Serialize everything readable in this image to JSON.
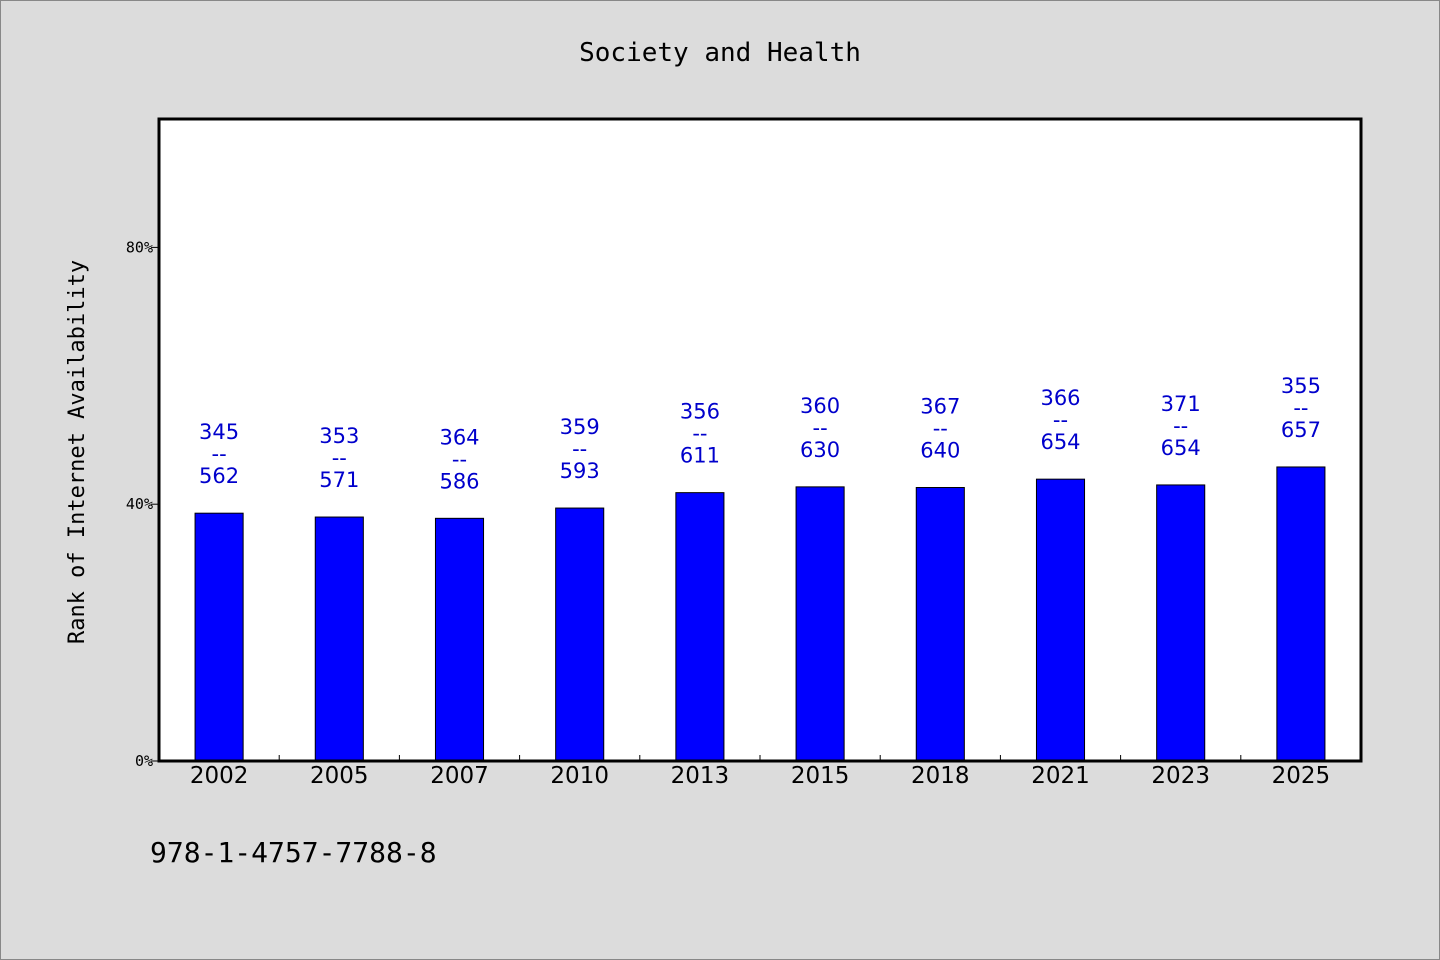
{
  "chart_data": {
    "type": "bar",
    "title": "Society and Health",
    "xlabel": "",
    "ylabel": "Rank of Internet Availability",
    "ylim": [
      0,
      100
    ],
    "yticks": [
      {
        "value": 0,
        "label": "0%"
      },
      {
        "value": 40,
        "label": "40%"
      },
      {
        "value": 80,
        "label": "80%"
      }
    ],
    "grid": false,
    "categories": [
      "2002",
      "2005",
      "2007",
      "2010",
      "2013",
      "2015",
      "2018",
      "2021",
      "2023",
      "2025"
    ],
    "values": [
      38.6,
      38.0,
      37.8,
      39.4,
      41.8,
      42.7,
      42.6,
      43.9,
      43.0,
      45.8
    ],
    "data_labels": [
      {
        "top": "345",
        "mid": "--",
        "bottom": "562"
      },
      {
        "top": "353",
        "mid": "--",
        "bottom": "571"
      },
      {
        "top": "364",
        "mid": "--",
        "bottom": "586"
      },
      {
        "top": "359",
        "mid": "--",
        "bottom": "593"
      },
      {
        "top": "356",
        "mid": "--",
        "bottom": "611"
      },
      {
        "top": "360",
        "mid": "--",
        "bottom": "630"
      },
      {
        "top": "367",
        "mid": "--",
        "bottom": "640"
      },
      {
        "top": "366",
        "mid": "--",
        "bottom": "654"
      },
      {
        "top": "371",
        "mid": "--",
        "bottom": "654"
      },
      {
        "top": "355",
        "mid": "--",
        "bottom": "657"
      }
    ],
    "colors": {
      "bar": "#0000ff",
      "label": "#0000cc",
      "background": "#dcdcdc",
      "plot": "#ffffff"
    }
  },
  "footer": {
    "text": "978-1-4757-7788-8"
  }
}
